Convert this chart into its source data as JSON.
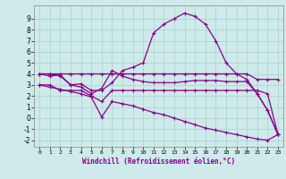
{
  "xlabel": "Windchill (Refroidissement éolien,°C)",
  "bg_color": "#ceeaea",
  "grid_color": "#aacfcf",
  "line_color": "#880088",
  "x_hours": [
    0,
    1,
    2,
    3,
    4,
    5,
    6,
    7,
    8,
    9,
    10,
    11,
    12,
    13,
    14,
    15,
    16,
    17,
    18,
    19,
    20,
    21,
    22,
    23
  ],
  "series_main": [
    4.0,
    4.0,
    3.8,
    3.0,
    3.1,
    2.5,
    2.5,
    3.2,
    4.3,
    4.6,
    5.0,
    7.7,
    8.5,
    9.0,
    9.5,
    9.2,
    8.5,
    7.0,
    5.0,
    4.0,
    3.5,
    2.2,
    0.7,
    -1.5
  ],
  "series_zigzag": [
    4.0,
    3.8,
    3.9,
    3.0,
    2.8,
    2.2,
    2.7,
    4.3,
    3.8,
    3.5,
    3.3,
    3.2,
    3.2,
    3.2,
    3.3,
    3.4,
    3.4,
    3.4,
    3.3,
    3.3,
    3.3,
    2.2,
    0.7,
    -1.5
  ],
  "series_flat_top": [
    4.0,
    4.0,
    4.0,
    4.0,
    4.0,
    4.0,
    4.0,
    4.0,
    4.0,
    4.0,
    4.0,
    4.0,
    4.0,
    4.0,
    4.0,
    4.0,
    4.0,
    4.0,
    4.0,
    4.0,
    4.0,
    3.5,
    3.5,
    3.5
  ],
  "series_flat_mid": [
    3.0,
    3.0,
    2.5,
    2.5,
    2.5,
    2.0,
    1.5,
    2.5,
    2.5,
    2.5,
    2.5,
    2.5,
    2.5,
    2.5,
    2.5,
    2.5,
    2.5,
    2.5,
    2.5,
    2.5,
    2.5,
    2.5,
    2.2,
    -1.5
  ],
  "series_diag": [
    3.0,
    2.8,
    2.6,
    2.4,
    2.2,
    1.9,
    0.1,
    1.5,
    1.3,
    1.1,
    0.8,
    0.5,
    0.3,
    0.0,
    -0.3,
    -0.6,
    -0.9,
    -1.1,
    -1.3,
    -1.5,
    -1.7,
    -1.9,
    -2.0,
    -1.5
  ],
  "ylim": [
    -2.6,
    10.2
  ],
  "yticks": [
    -2,
    -1,
    0,
    1,
    2,
    3,
    4,
    5,
    6,
    7,
    8,
    9
  ],
  "xtick_labels": [
    "0",
    "1",
    "2",
    "3",
    "4",
    "5",
    "6",
    "7",
    "8",
    "9",
    "10",
    "11",
    "12",
    "13",
    "14",
    "15",
    "16",
    "17",
    "18",
    "19",
    "20",
    "21",
    "22",
    "23"
  ]
}
